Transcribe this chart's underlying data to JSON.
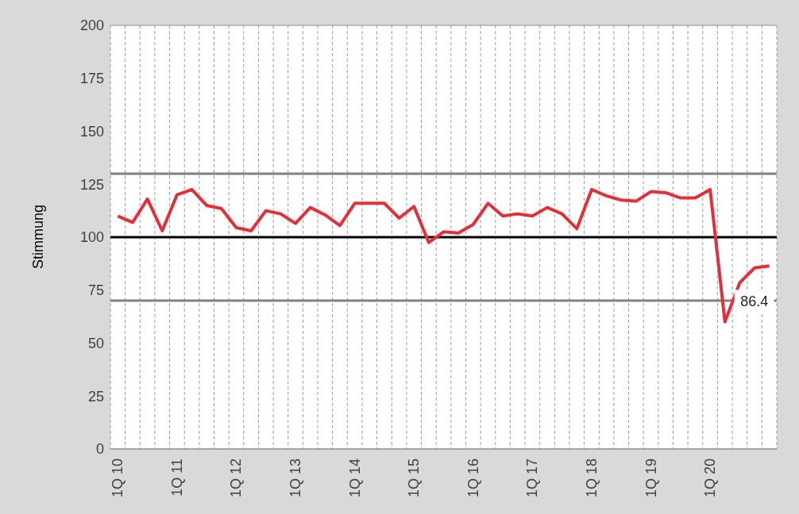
{
  "chart_data": {
    "type": "line",
    "ylabel": "Stimmung",
    "categories": [
      "1Q 10",
      null,
      null,
      null,
      "1Q 11",
      null,
      null,
      null,
      "1Q 12",
      null,
      null,
      null,
      "1Q 13",
      null,
      null,
      null,
      "1Q 14",
      null,
      null,
      null,
      "1Q 15",
      null,
      null,
      null,
      "1Q 16",
      null,
      null,
      null,
      "1Q 17",
      null,
      null,
      null,
      "1Q 18",
      null,
      null,
      null,
      "1Q 19",
      null,
      null,
      null,
      "1Q 20",
      null,
      null,
      null,
      null
    ],
    "series": [
      {
        "color": "#e0303a",
        "values": [
          110,
          107,
          118,
          103,
          120,
          122.5,
          115,
          113.5,
          104.5,
          103,
          112.5,
          111,
          106.5,
          114,
          110.5,
          105.5,
          116,
          116,
          116,
          109,
          114.5,
          97.5,
          102.5,
          102,
          106,
          116,
          110,
          111,
          110,
          114,
          111,
          104,
          122.5,
          119.5,
          117.5,
          117,
          121.5,
          121,
          118.5,
          118.5,
          122.5,
          60,
          78.5,
          85.5,
          86.4
        ],
        "value_labels": [
          null,
          null,
          null,
          null,
          null,
          null,
          null,
          null,
          null,
          null,
          null,
          null,
          null,
          null,
          null,
          null,
          null,
          null,
          null,
          null,
          null,
          null,
          null,
          null,
          null,
          null,
          null,
          null,
          null,
          null,
          null,
          null,
          null,
          null,
          null,
          null,
          null,
          null,
          null,
          null,
          null,
          null,
          null,
          null,
          "86.4"
        ]
      }
    ],
    "ylim": [
      0,
      200
    ],
    "yticks": [
      0,
      25,
      50,
      75,
      100,
      125,
      150,
      175,
      200
    ],
    "grid": true,
    "legend": false,
    "marker": "none",
    "line_style": "solid",
    "ref_lines": [
      {
        "axis": "y",
        "value": 130,
        "color": "#808080"
      },
      {
        "axis": "y",
        "value": 100,
        "color": "#000000"
      },
      {
        "axis": "y",
        "value": 70,
        "color": "#808080"
      }
    ]
  }
}
